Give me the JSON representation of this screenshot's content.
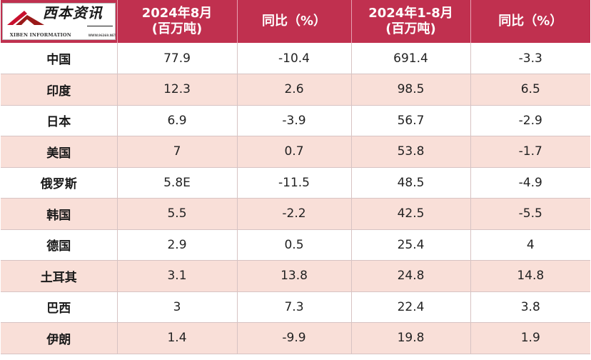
{
  "logo": {
    "title": "西本资讯",
    "subtitle": "XIBEN INFORMATION",
    "url": "WWW.96369.NET"
  },
  "header": {
    "col1": [
      "2024年8月",
      "(百万吨)"
    ],
    "col2": "同比（%）",
    "col3": [
      "2024年1-8月",
      "(百万吨)"
    ],
    "col4": "同比（%）"
  },
  "rows": [
    {
      "country": "中国",
      "aug": "77.9",
      "aug_yoy": "-10.4",
      "ytd": "691.4",
      "ytd_yoy": "-3.3"
    },
    {
      "country": "印度",
      "aug": "12.3",
      "aug_yoy": "2.6",
      "ytd": "98.5",
      "ytd_yoy": "6.5"
    },
    {
      "country": "日本",
      "aug": "6.9",
      "aug_yoy": "-3.9",
      "ytd": "56.7",
      "ytd_yoy": "-2.9"
    },
    {
      "country": "美国",
      "aug": "7",
      "aug_yoy": "0.7",
      "ytd": "53.8",
      "ytd_yoy": "-1.7"
    },
    {
      "country": "俄罗斯",
      "aug": "5.8E",
      "aug_yoy": "-11.5",
      "ytd": "48.5",
      "ytd_yoy": "-4.9"
    },
    {
      "country": "韩国",
      "aug": "5.5",
      "aug_yoy": "-2.2",
      "ytd": "42.5",
      "ytd_yoy": "-5.5"
    },
    {
      "country": "德国",
      "aug": "2.9",
      "aug_yoy": "0.5",
      "ytd": "25.4",
      "ytd_yoy": "4"
    },
    {
      "country": "土耳其",
      "aug": "3.1",
      "aug_yoy": "13.8",
      "ytd": "24.8",
      "ytd_yoy": "14.8"
    },
    {
      "country": "巴西",
      "aug": "3",
      "aug_yoy": "7.3",
      "ytd": "22.4",
      "ytd_yoy": "3.8"
    },
    {
      "country": "伊朗",
      "aug": "1.4",
      "aug_yoy": "-9.9",
      "ytd": "19.8",
      "ytd_yoy": "1.9"
    }
  ],
  "colors": {
    "header_bg": "#c0304f",
    "stripe_bg": "#f9dfd8",
    "logo_red": "#c8102e"
  }
}
